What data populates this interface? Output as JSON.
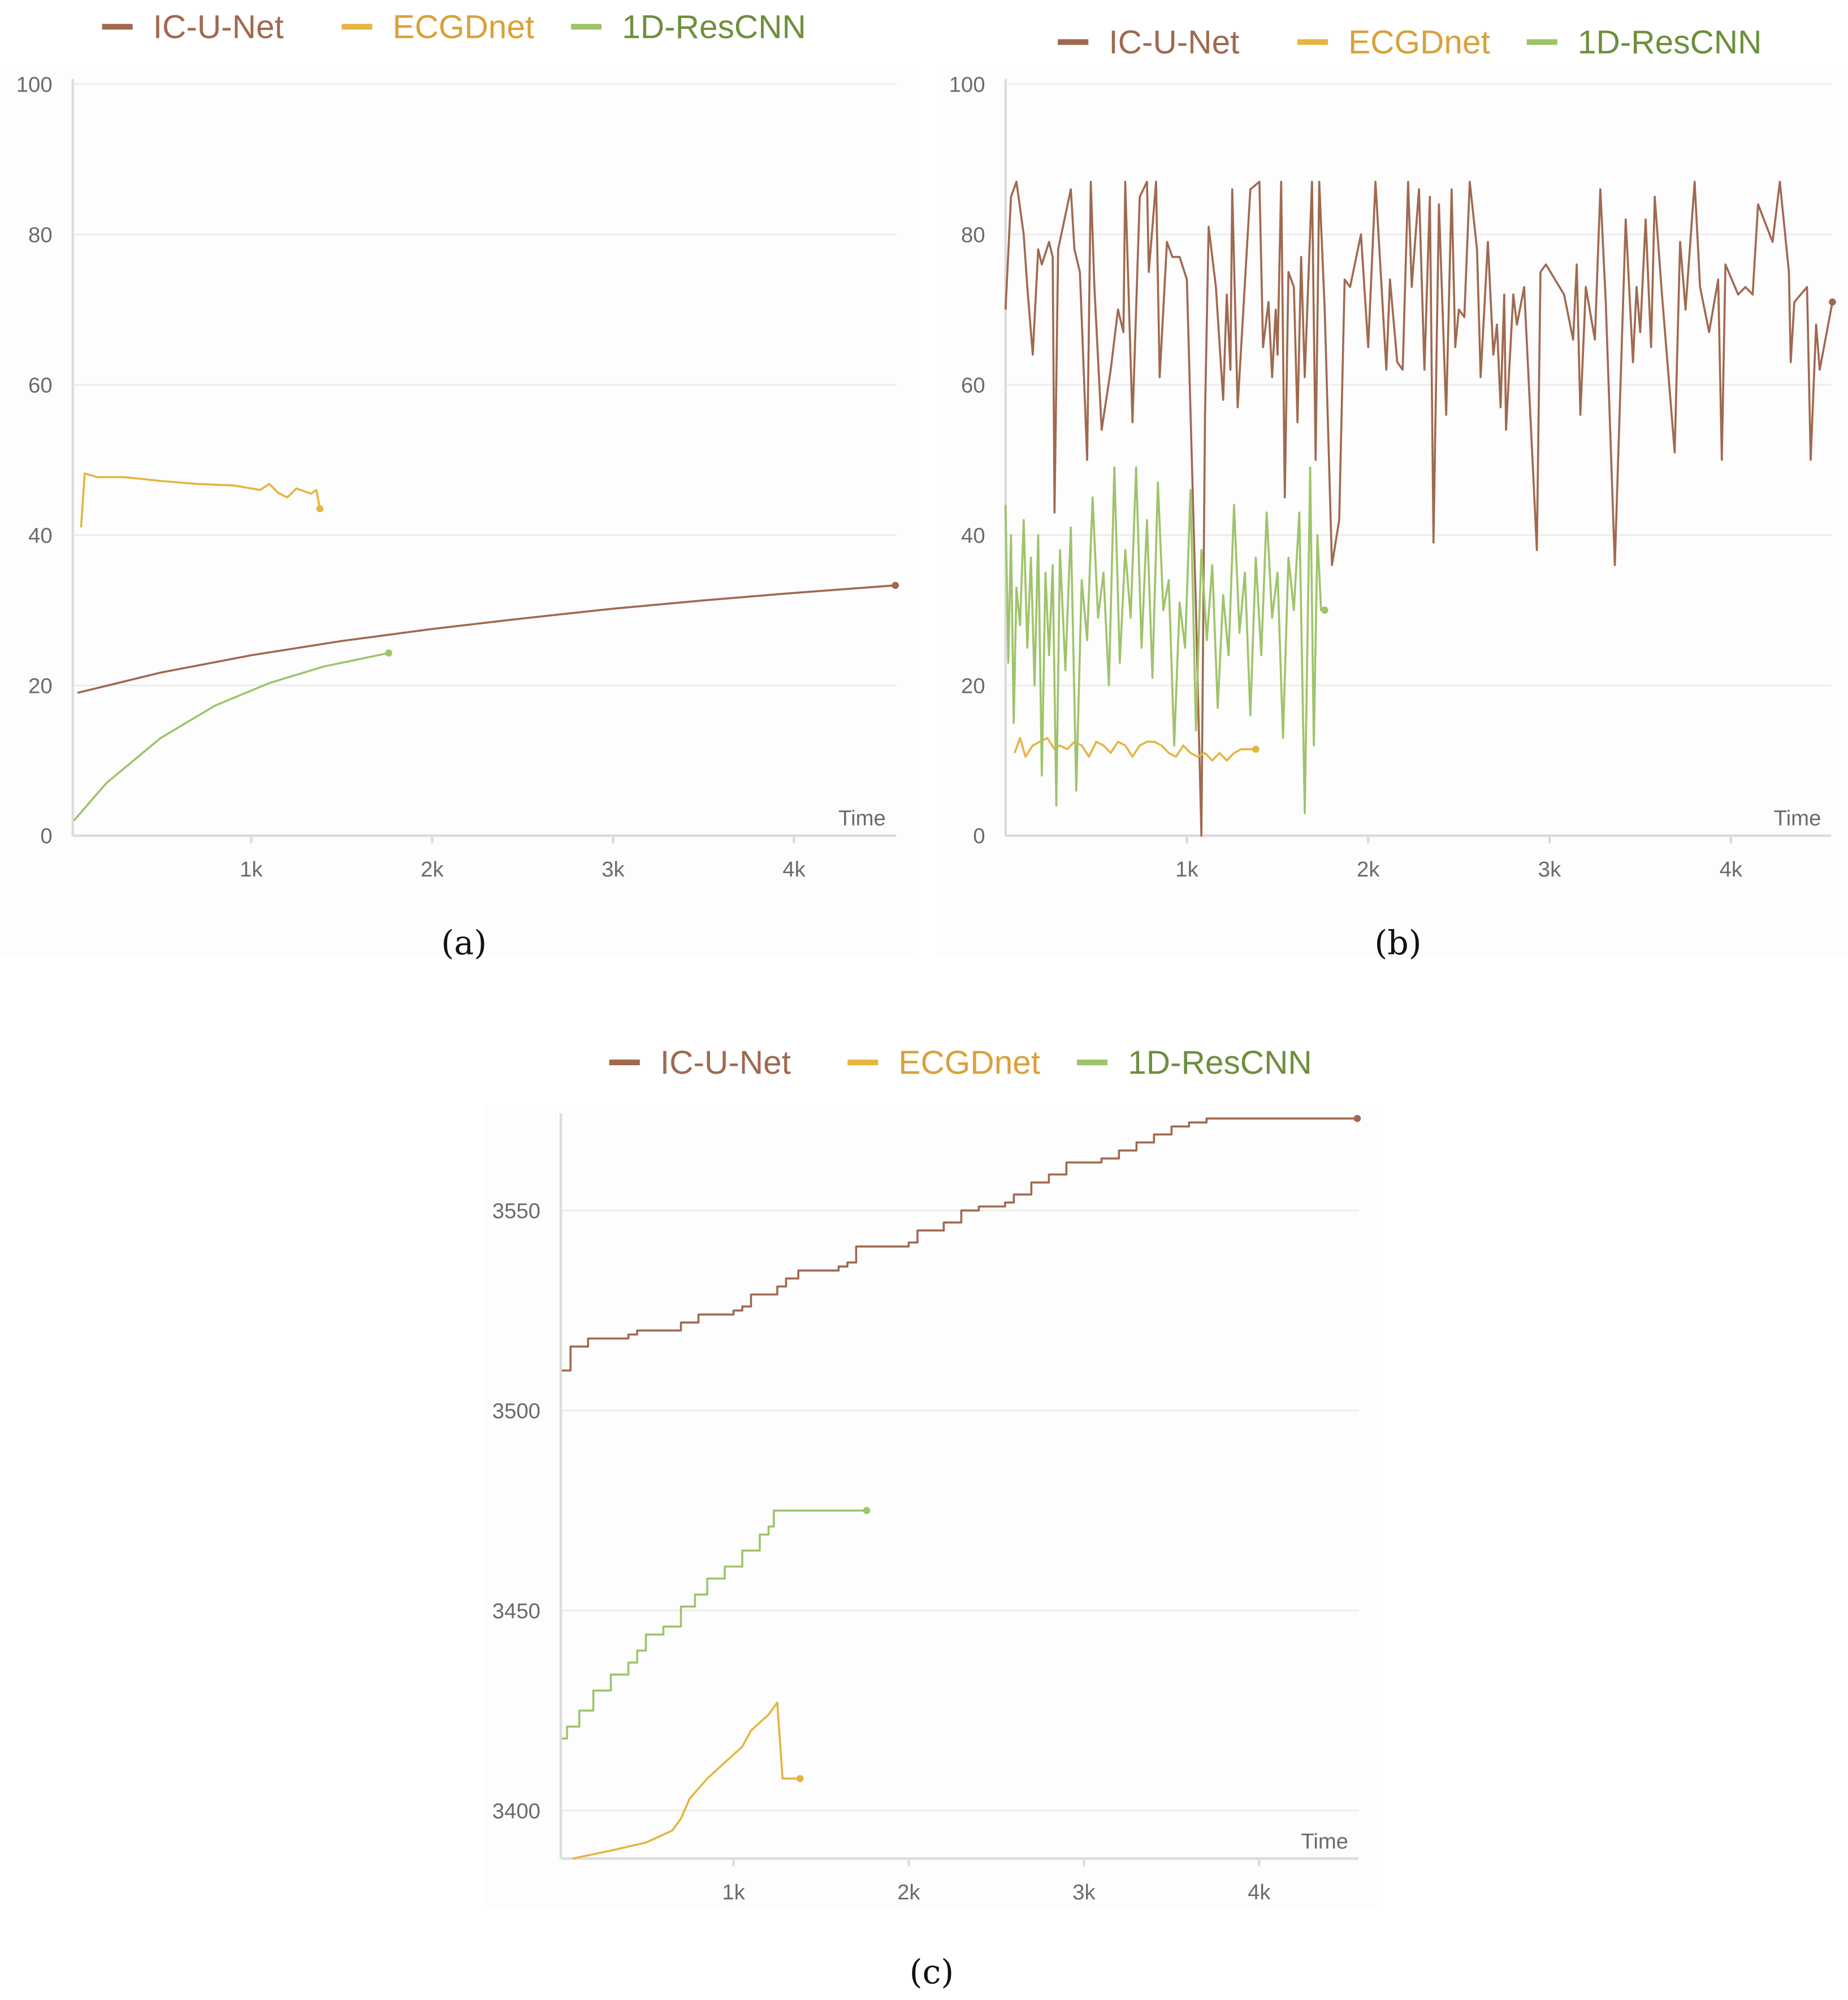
{
  "colors": {
    "IC-U-Net": "#a0694f",
    "ECGDnet": "#e5b540",
    "1D-ResCNN": "#9ec46a",
    "legend_text": {
      "IC-U-Net": "#a0694f",
      "ECGDnet": "#d9a13a",
      "1D-ResCNN": "#6e8f3c"
    }
  },
  "chart_data": [
    {
      "type": "line",
      "caption": "(a)",
      "xlabel": "Time",
      "ylabel": "",
      "xlim": [
        0,
        4560
      ],
      "ylim": [
        0,
        100
      ],
      "xticks": [
        1000,
        2000,
        3000,
        4000
      ],
      "xtick_labels": [
        "1k",
        "2k",
        "3k",
        "4k"
      ],
      "yticks": [
        0,
        20,
        40,
        60,
        80,
        100
      ],
      "ytick_labels": [
        "0",
        "20",
        "40",
        "60",
        "80",
        "100"
      ],
      "grid": true,
      "legend": "top",
      "series": [
        {
          "name": "IC-U-Net",
          "x": [
            40,
            500,
            1000,
            1500,
            2000,
            2500,
            3000,
            3500,
            4000,
            4560
          ],
          "y": [
            19,
            21.7,
            24,
            25.9,
            27.5,
            28.9,
            30.2,
            31.3,
            32.3,
            33.3
          ]
        },
        {
          "name": "ECGDnet",
          "x": [
            60,
            80,
            150,
            300,
            500,
            700,
            900,
            1050,
            1100,
            1150,
            1200,
            1250,
            1330,
            1360,
            1380
          ],
          "y": [
            41,
            48.2,
            47.7,
            47.7,
            47.2,
            46.8,
            46.6,
            46,
            46.8,
            45.6,
            45,
            46.2,
            45.5,
            46,
            43.5
          ]
        },
        {
          "name": "1D-ResCNN",
          "x": [
            20,
            200,
            500,
            800,
            1100,
            1400,
            1760
          ],
          "y": [
            2,
            7,
            13,
            17.3,
            20.3,
            22.5,
            24.3
          ]
        }
      ]
    },
    {
      "type": "line",
      "caption": "(b)",
      "xlabel": "Time",
      "ylabel": "",
      "xlim": [
        0,
        4560
      ],
      "ylim": [
        0,
        100
      ],
      "xticks": [
        1000,
        2000,
        3000,
        4000
      ],
      "xtick_labels": [
        "1k",
        "2k",
        "3k",
        "4k"
      ],
      "yticks": [
        0,
        20,
        40,
        60,
        80,
        100
      ],
      "ytick_labels": [
        "0",
        "20",
        "40",
        "60",
        "80",
        "100"
      ],
      "grid": true,
      "legend": "top",
      "series": [
        {
          "name": "IC-U-Net",
          "x": [
            0,
            30,
            60,
            100,
            120,
            150,
            180,
            200,
            240,
            260,
            270,
            290,
            360,
            380,
            410,
            450,
            470,
            490,
            530,
            580,
            620,
            650,
            660,
            700,
            740,
            780,
            790,
            830,
            850,
            890,
            920,
            960,
            1000,
            1050,
            1080,
            1100,
            1120,
            1160,
            1200,
            1220,
            1240,
            1250,
            1280,
            1350,
            1400,
            1420,
            1450,
            1470,
            1490,
            1500,
            1520,
            1540,
            1560,
            1590,
            1610,
            1630,
            1650,
            1690,
            1710,
            1730,
            1760,
            1800,
            1840,
            1870,
            1900,
            1960,
            2000,
            2040,
            2100,
            2120,
            2160,
            2190,
            2220,
            2240,
            2280,
            2310,
            2340,
            2360,
            2390,
            2430,
            2460,
            2480,
            2500,
            2530,
            2560,
            2600,
            2620,
            2660,
            2690,
            2710,
            2730,
            2750,
            2760,
            2800,
            2820,
            2860,
            2930,
            2950,
            2980,
            3030,
            3080,
            3130,
            3150,
            3170,
            3200,
            3250,
            3280,
            3310,
            3360,
            3420,
            3460,
            3480,
            3500,
            3530,
            3560,
            3580,
            3620,
            3690,
            3720,
            3750,
            3800,
            3830,
            3880,
            3930,
            3950,
            3970,
            4040,
            4080,
            4120,
            4150,
            4230,
            4270,
            4320,
            4330,
            4350,
            4420,
            4440,
            4470,
            4490,
            4560
          ],
          "y": [
            70,
            85,
            87,
            80,
            73,
            64,
            78,
            76,
            79,
            77,
            43,
            78,
            86,
            78,
            75,
            50,
            87,
            73,
            54,
            62,
            70,
            67,
            87,
            55,
            85,
            87,
            75,
            87,
            61,
            79,
            77,
            77,
            74,
            30,
            0,
            56,
            81,
            73,
            58,
            72,
            62,
            86,
            57,
            86,
            87,
            65,
            71,
            61,
            70,
            64,
            87,
            45,
            75,
            73,
            55,
            77,
            61,
            87,
            50,
            87,
            70,
            36,
            42,
            74,
            73,
            80,
            65,
            87,
            62,
            74,
            63,
            62,
            87,
            73,
            86,
            62,
            85,
            39,
            84,
            56,
            86,
            65,
            70,
            69,
            87,
            78,
            61,
            79,
            64,
            68,
            57,
            72,
            54,
            72,
            68,
            73,
            38,
            75,
            76,
            74,
            72,
            66,
            76,
            56,
            73,
            66,
            86,
            71,
            36,
            82,
            63,
            73,
            67,
            82,
            65,
            85,
            72,
            51,
            79,
            70,
            87,
            73,
            67,
            74,
            50,
            76,
            72,
            73,
            72,
            84,
            79,
            87,
            75,
            63,
            71,
            73,
            50,
            68,
            62,
            71
          ]
        },
        {
          "name": "ECGDnet",
          "x": [
            50,
            80,
            110,
            150,
            190,
            230,
            270,
            300,
            340,
            380,
            420,
            460,
            500,
            540,
            580,
            620,
            660,
            700,
            740,
            780,
            820,
            860,
            900,
            940,
            980,
            1020,
            1060,
            1100,
            1140,
            1180,
            1220,
            1260,
            1300,
            1340,
            1380
          ],
          "y": [
            11,
            13,
            10.5,
            12,
            12.5,
            13,
            11.5,
            12,
            11.5,
            12.5,
            12,
            10.5,
            12.5,
            12,
            11,
            12.5,
            12,
            10.5,
            12,
            12.5,
            12.5,
            12,
            11,
            10.5,
            12,
            11,
            10.5,
            11,
            10,
            11,
            10,
            11,
            11.5,
            11.5,
            11.5
          ]
        },
        {
          "name": "1D-ResCNN",
          "x": [
            0,
            15,
            30,
            45,
            60,
            80,
            100,
            120,
            140,
            160,
            180,
            200,
            220,
            240,
            260,
            280,
            300,
            330,
            360,
            390,
            420,
            450,
            480,
            510,
            540,
            570,
            600,
            630,
            660,
            690,
            720,
            750,
            780,
            810,
            840,
            870,
            900,
            930,
            960,
            990,
            1020,
            1050,
            1080,
            1110,
            1140,
            1170,
            1200,
            1230,
            1260,
            1290,
            1320,
            1350,
            1380,
            1410,
            1440,
            1470,
            1500,
            1530,
            1560,
            1590,
            1620,
            1650,
            1680,
            1700,
            1720,
            1740,
            1760
          ],
          "y": [
            44,
            23,
            40,
            15,
            33,
            28,
            42,
            25,
            37,
            20,
            40,
            8,
            35,
            24,
            36,
            4,
            38,
            22,
            41,
            6,
            34,
            26,
            45,
            29,
            35,
            20,
            49,
            23,
            38,
            29,
            49,
            25,
            42,
            21,
            47,
            30,
            34,
            12,
            31,
            25,
            46,
            14,
            38,
            26,
            36,
            17,
            32,
            24,
            44,
            27,
            35,
            16,
            37,
            24,
            43,
            29,
            35,
            13,
            37,
            30,
            43,
            3,
            49,
            12,
            40,
            30,
            30
          ]
        }
      ]
    },
    {
      "type": "line",
      "caption": "(c)",
      "xlabel": "Time",
      "ylabel": "",
      "xlim": [
        0,
        4560
      ],
      "ylim": [
        3388,
        3573
      ],
      "xticks": [
        1000,
        2000,
        3000,
        4000
      ],
      "xtick_labels": [
        "1k",
        "2k",
        "3k",
        "4k"
      ],
      "yticks": [
        3400,
        3450,
        3500,
        3550
      ],
      "ytick_labels": [
        "3400",
        "3450",
        "3500",
        "3550"
      ],
      "grid": true,
      "legend": "top",
      "series": [
        {
          "name": "IC-U-Net",
          "step": true,
          "x": [
            20,
            50,
            70,
            140,
            170,
            350,
            400,
            450,
            600,
            700,
            800,
            1000,
            1050,
            1100,
            1250,
            1300,
            1370,
            1600,
            1650,
            1700,
            2000,
            2050,
            2200,
            2300,
            2400,
            2550,
            2600,
            2700,
            2800,
            2900,
            3100,
            3200,
            3300,
            3400,
            3500,
            3600,
            3700,
            4560
          ],
          "y": [
            3510,
            3510,
            3516,
            3516,
            3518,
            3518,
            3519,
            3520,
            3520,
            3522,
            3524,
            3525,
            3526,
            3529,
            3531,
            3533,
            3535,
            3536,
            3537,
            3541,
            3542,
            3545,
            3547,
            3550,
            3551,
            3552,
            3554,
            3557,
            3559,
            3562,
            3563,
            3565,
            3567,
            3569,
            3571,
            3572,
            3573,
            3573
          ]
        },
        {
          "name": "ECGDnet",
          "step": false,
          "x": [
            80,
            300,
            500,
            650,
            700,
            750,
            850,
            950,
            1050,
            1100,
            1200,
            1250,
            1280,
            1380
          ],
          "y": [
            3388,
            3390,
            3392,
            3395,
            3398,
            3403,
            3408,
            3412,
            3416,
            3420,
            3424,
            3427,
            3408,
            3408
          ]
        },
        {
          "name": "1D-ResCNN",
          "step": true,
          "x": [
            20,
            50,
            120,
            200,
            300,
            400,
            450,
            500,
            600,
            700,
            780,
            850,
            950,
            1050,
            1150,
            1200,
            1230,
            1760
          ],
          "y": [
            3418,
            3421,
            3425,
            3430,
            3434,
            3437,
            3440,
            3444,
            3446,
            3451,
            3454,
            3458,
            3461,
            3465,
            3469,
            3471,
            3475,
            3475
          ]
        }
      ]
    }
  ]
}
